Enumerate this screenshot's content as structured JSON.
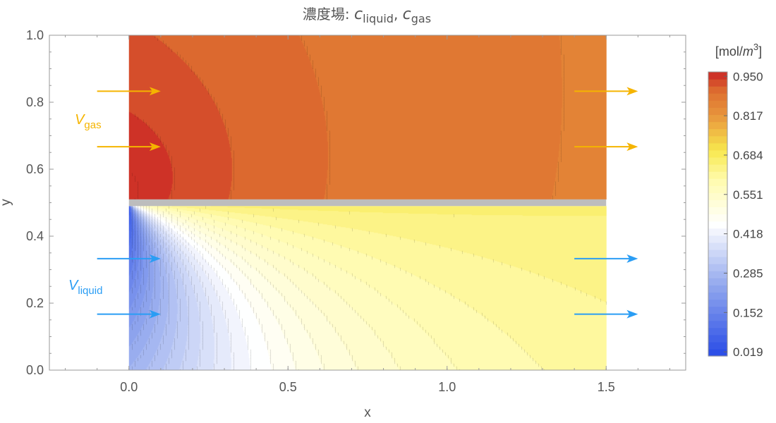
{
  "chart_data": {
    "type": "heatmap",
    "title": {
      "prefix": "濃度場: ",
      "var1": "c",
      "sub1": "liquid",
      "separator": ", ",
      "var2": "c",
      "sub2": "gas"
    },
    "xlabel": "x",
    "ylabel": "y",
    "xlim": [
      -0.25,
      1.75
    ],
    "ylim": [
      0.0,
      1.0
    ],
    "xticks": [
      {
        "value": 0.0,
        "label": "0.0"
      },
      {
        "value": 0.5,
        "label": "0.5"
      },
      {
        "value": 1.0,
        "label": "1.0"
      },
      {
        "value": 1.5,
        "label": "1.5"
      }
    ],
    "yticks": [
      {
        "value": 0.0,
        "label": "0.0"
      },
      {
        "value": 0.2,
        "label": "0.2"
      },
      {
        "value": 0.4,
        "label": "0.4"
      },
      {
        "value": 0.6,
        "label": "0.6"
      },
      {
        "value": 0.8,
        "label": "0.8"
      },
      {
        "value": 1.0,
        "label": "1.0"
      }
    ],
    "domain": {
      "x": [
        0.0,
        1.5
      ],
      "y": [
        0.0,
        1.0
      ]
    },
    "membrane": {
      "y_center": 0.5,
      "thickness": 0.02,
      "color": "#bdbdbd"
    },
    "gas_region": {
      "y_range": [
        0.51,
        1.0
      ],
      "inlet_value": 0.96,
      "far_value": 0.86,
      "corner_value": 0.9
    },
    "liquid_region": {
      "y_range": [
        0.0,
        0.49
      ],
      "inlet_value": 0.02,
      "interface_value": 0.7,
      "far_value": 0.65
    },
    "colorbar": {
      "title": {
        "prefix": "[mol/",
        "var": "m",
        "sup": "3",
        "suffix": "]"
      },
      "range": [
        0.005,
        0.965
      ],
      "levels": 40,
      "ticks": [
        {
          "value": 0.95,
          "label": "0.950"
        },
        {
          "value": 0.817,
          "label": "0.817"
        },
        {
          "value": 0.684,
          "label": "0.684"
        },
        {
          "value": 0.551,
          "label": "0.551"
        },
        {
          "value": 0.418,
          "label": "0.418"
        },
        {
          "value": 0.285,
          "label": "0.285"
        },
        {
          "value": 0.152,
          "label": "0.152"
        },
        {
          "value": 0.019,
          "label": "0.019"
        }
      ],
      "stops": [
        {
          "v": 0.0,
          "color": "#2448e6"
        },
        {
          "v": 0.25,
          "color": "#95aaee"
        },
        {
          "v": 0.45,
          "color": "#ffffff"
        },
        {
          "v": 0.6,
          "color": "#fffbae"
        },
        {
          "v": 0.7,
          "color": "#f8e84e"
        },
        {
          "v": 0.82,
          "color": "#e8943c"
        },
        {
          "v": 0.9,
          "color": "#dd6f30"
        },
        {
          "v": 0.97,
          "color": "#c91f24"
        }
      ]
    },
    "annotations": [
      {
        "text": "V",
        "sub": "gas",
        "x": -0.17,
        "y": 0.735,
        "color": "#f5b400"
      },
      {
        "text": "V",
        "sub": "liquid",
        "x": -0.19,
        "y": 0.24,
        "color": "#2a9df4"
      }
    ],
    "arrows": [
      {
        "group": "gas",
        "x0": -0.1,
        "x1": 0.1,
        "y": 0.833,
        "color": "#f5b400"
      },
      {
        "group": "gas",
        "x0": -0.1,
        "x1": 0.1,
        "y": 0.667,
        "color": "#f5b400"
      },
      {
        "group": "gas",
        "x0": 1.4,
        "x1": 1.6,
        "y": 0.833,
        "color": "#f5b400"
      },
      {
        "group": "gas",
        "x0": 1.4,
        "x1": 1.6,
        "y": 0.667,
        "color": "#f5b400"
      },
      {
        "group": "liquid",
        "x0": -0.1,
        "x1": 0.1,
        "y": 0.333,
        "color": "#2a9df4"
      },
      {
        "group": "liquid",
        "x0": -0.1,
        "x1": 0.1,
        "y": 0.167,
        "color": "#2a9df4"
      },
      {
        "group": "liquid",
        "x0": 1.4,
        "x1": 1.6,
        "y": 0.333,
        "color": "#2a9df4"
      },
      {
        "group": "liquid",
        "x0": 1.4,
        "x1": 1.6,
        "y": 0.167,
        "color": "#2a9df4"
      }
    ]
  }
}
